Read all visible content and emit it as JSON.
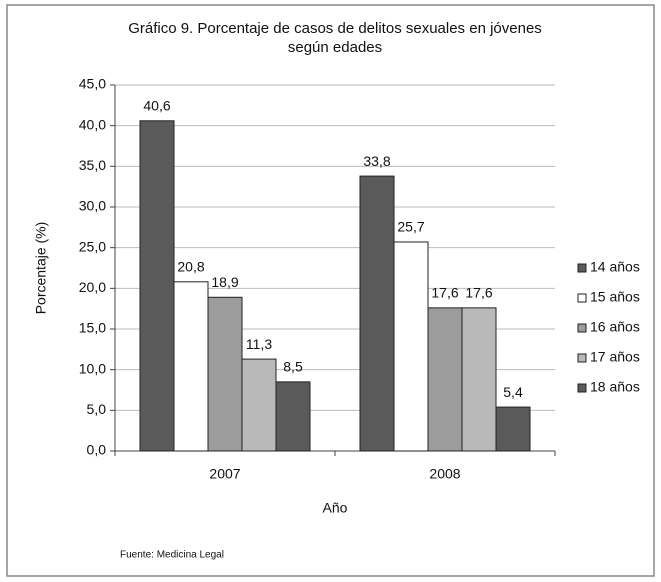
{
  "chart_data": {
    "type": "bar",
    "title": [
      "Gráfico 9. Porcentaje de casos de delitos sexuales en jóvenes",
      "según edades"
    ],
    "x_label": "Año",
    "y_label": "Porcentaje (%)",
    "source": "Fuente: Medicina Legal",
    "categories": [
      "2007",
      "2008"
    ],
    "series": [
      {
        "name": "14 años",
        "color": "#5a5a5a",
        "values": [
          40.6,
          33.8
        ],
        "value_labels": [
          "40,6",
          "33,8"
        ]
      },
      {
        "name": "15 años",
        "color": "#ffffff",
        "values": [
          20.8,
          25.7
        ],
        "value_labels": [
          "20,8",
          "25,7"
        ]
      },
      {
        "name": "16 años",
        "color": "#9c9c9c",
        "values": [
          18.9,
          17.6
        ],
        "value_labels": [
          "18,9",
          "17,6"
        ]
      },
      {
        "name": "17 años",
        "color": "#b9b9b9",
        "values": [
          11.3,
          17.6
        ],
        "value_labels": [
          "11,3",
          "17,6"
        ]
      },
      {
        "name": "18 años",
        "color": "#5a5a5a",
        "values": [
          8.5,
          5.4
        ],
        "value_labels": [
          "8,5",
          "5,4"
        ]
      }
    ],
    "ylim": [
      0,
      45
    ],
    "yticks": [
      {
        "value": 0,
        "label": "0,0"
      },
      {
        "value": 5,
        "label": "5,0"
      },
      {
        "value": 10,
        "label": "10,0"
      },
      {
        "value": 15,
        "label": "15,0"
      },
      {
        "value": 20,
        "label": "20,0"
      },
      {
        "value": 25,
        "label": "25,0"
      },
      {
        "value": 30,
        "label": "30,0"
      },
      {
        "value": 35,
        "label": "35,0"
      },
      {
        "value": 40,
        "label": "40,0"
      },
      {
        "value": 45,
        "label": "45,0"
      }
    ],
    "grid": true,
    "legend": "right"
  }
}
